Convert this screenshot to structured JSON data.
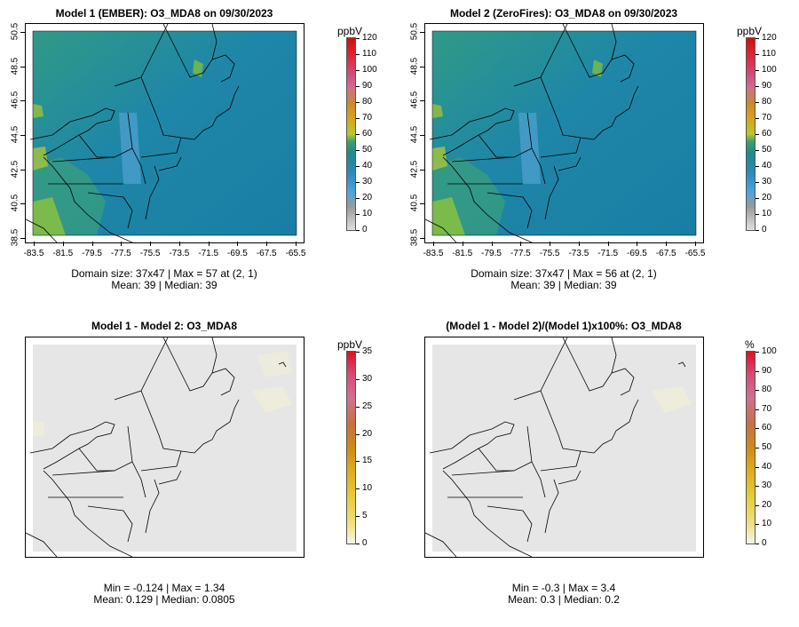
{
  "panels": {
    "p1": {
      "title": "Model 1 (EMBER): O3_MDA8 on 09/30/2023",
      "caption_line1": "Domain size: 37x47 | Max = 57 at (2, 1)",
      "caption_line2": "Mean: 39 |  Median: 39",
      "units": "ppbV"
    },
    "p2": {
      "title": "Model 2 (ZeroFires): O3_MDA8 on 09/30/2023",
      "caption_line1": "Domain size: 37x47 | Max = 56 at (2, 1)",
      "caption_line2": "Mean: 39 |  Median: 39",
      "units": "ppbV"
    },
    "p3": {
      "title": "Model 1 - Model 2: O3_MDA8",
      "caption_line1": "Min = -0.124 | Max = 1.34",
      "caption_line2": "Mean: 0.129 |  Median: 0.0805",
      "units": "ppbV"
    },
    "p4": {
      "title": "(Model 1 - Model 2)/(Model 1)x100%: O3_MDA8",
      "caption_line1": "Min = -0.3 | Max = 3.4",
      "caption_line2": "Mean: 0.3 |  Median: 0.2",
      "units": "%"
    }
  },
  "x_ticks": [
    "-83.5",
    "-81.5",
    "-79.5",
    "-77.5",
    "-75.5",
    "-73.5",
    "-71.5",
    "-69.5",
    "-67.5",
    "-65.5"
  ],
  "y_ticks": [
    "38.5",
    "40.5",
    "42.5",
    "44.5",
    "46.5",
    "48.5",
    "50.5"
  ],
  "colorbar_conc": [
    "0",
    "10",
    "20",
    "30",
    "40",
    "50",
    "60",
    "70",
    "80",
    "90",
    "100",
    "110",
    "120"
  ],
  "colorbar_diff": [
    "0",
    "5",
    "10",
    "15",
    "20",
    "25",
    "30",
    "35"
  ],
  "colorbar_pct": [
    "0",
    "10",
    "20",
    "30",
    "40",
    "50",
    "60",
    "70",
    "80",
    "90",
    "100"
  ],
  "colors": {
    "ocean_fill": "#1b7fae",
    "land_fill": "#2a9a8a",
    "diff_fill": "#e6e6e6",
    "outline": "#000000"
  }
}
